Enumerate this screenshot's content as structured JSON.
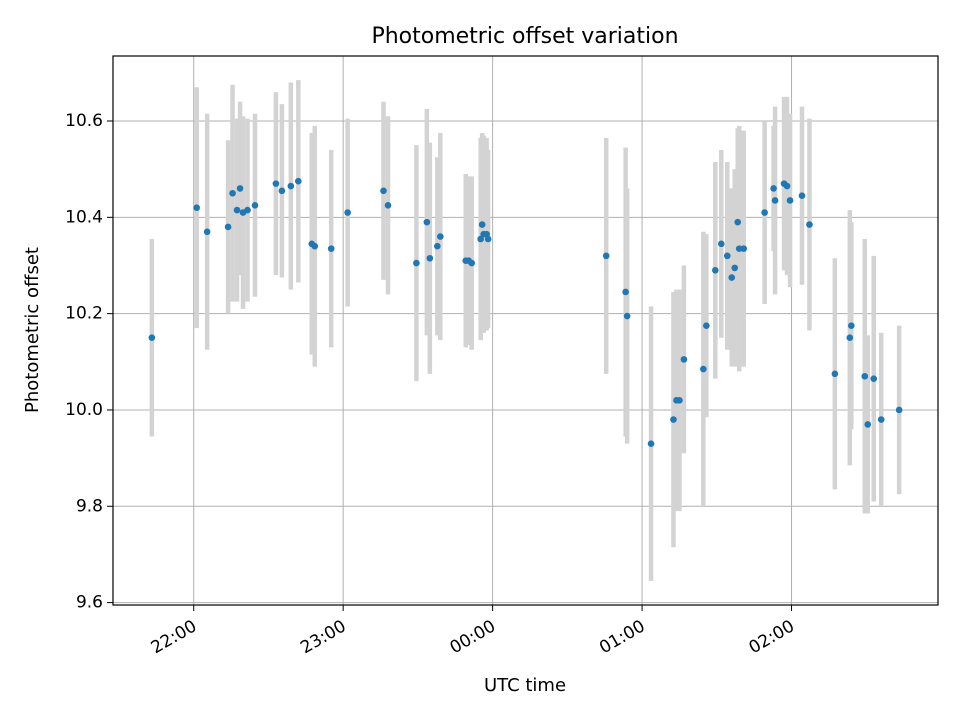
{
  "chart_data": {
    "type": "scatter",
    "title": "Photometric offset variation",
    "xlabel": "UTC time",
    "ylabel": "Photometric offset",
    "x_units": "UTC time (hours relative to 00:00)",
    "xlim": [
      -2.54,
      2.98
    ],
    "ylim": [
      9.595,
      10.735
    ],
    "grid": true,
    "xticks": [
      {
        "value": -2,
        "label": "22:00"
      },
      {
        "value": -1,
        "label": "23:00"
      },
      {
        "value": 0,
        "label": "00:00"
      },
      {
        "value": 1,
        "label": "01:00"
      },
      {
        "value": 2,
        "label": "02:00"
      }
    ],
    "yticks": [
      {
        "value": 9.6,
        "label": "9.6"
      },
      {
        "value": 9.8,
        "label": "9.8"
      },
      {
        "value": 10.0,
        "label": "10.0"
      },
      {
        "value": 10.2,
        "label": "10.2"
      },
      {
        "value": 10.4,
        "label": "10.4"
      },
      {
        "value": 10.6,
        "label": "10.6"
      }
    ],
    "marker_color": "#1f77b4",
    "errorbar_color": "#d3d3d3",
    "series": [
      {
        "points": [
          {
            "x": -2.28,
            "y": 10.15,
            "err": 0.205
          },
          {
            "x": -1.98,
            "y": 10.42,
            "err": 0.25
          },
          {
            "x": -1.91,
            "y": 10.37,
            "err": 0.245
          },
          {
            "x": -1.77,
            "y": 10.38,
            "err": 0.18
          },
          {
            "x": -1.74,
            "y": 10.45,
            "err": 0.225
          },
          {
            "x": -1.71,
            "y": 10.415,
            "err": 0.19
          },
          {
            "x": -1.69,
            "y": 10.46,
            "err": 0.18
          },
          {
            "x": -1.67,
            "y": 10.41,
            "err": 0.2
          },
          {
            "x": -1.64,
            "y": 10.415,
            "err": 0.19
          },
          {
            "x": -1.59,
            "y": 10.425,
            "err": 0.19
          },
          {
            "x": -1.45,
            "y": 10.47,
            "err": 0.19
          },
          {
            "x": -1.41,
            "y": 10.455,
            "err": 0.18
          },
          {
            "x": -1.35,
            "y": 10.465,
            "err": 0.215
          },
          {
            "x": -1.3,
            "y": 10.475,
            "err": 0.21
          },
          {
            "x": -1.21,
            "y": 10.345,
            "err": 0.23
          },
          {
            "x": -1.19,
            "y": 10.34,
            "err": 0.25
          },
          {
            "x": -1.08,
            "y": 10.335,
            "err": 0.205
          },
          {
            "x": -0.97,
            "y": 10.41,
            "err": 0.195
          },
          {
            "x": -0.73,
            "y": 10.455,
            "err": 0.185
          },
          {
            "x": -0.7,
            "y": 10.425,
            "err": 0.185
          },
          {
            "x": -0.51,
            "y": 10.305,
            "err": 0.245
          },
          {
            "x": -0.44,
            "y": 10.39,
            "err": 0.235
          },
          {
            "x": -0.42,
            "y": 10.315,
            "err": 0.24
          },
          {
            "x": -0.37,
            "y": 10.34,
            "err": 0.185
          },
          {
            "x": -0.35,
            "y": 10.36,
            "err": 0.215
          },
          {
            "x": -0.18,
            "y": 10.31,
            "err": 0.18
          },
          {
            "x": -0.16,
            "y": 10.31,
            "err": 0.175
          },
          {
            "x": -0.14,
            "y": 10.305,
            "err": 0.18
          },
          {
            "x": -0.08,
            "y": 10.355,
            "err": 0.21
          },
          {
            "x": -0.07,
            "y": 10.385,
            "err": 0.19
          },
          {
            "x": -0.06,
            "y": 10.365,
            "err": 0.205
          },
          {
            "x": -0.04,
            "y": 10.365,
            "err": 0.2
          },
          {
            "x": -0.03,
            "y": 10.355,
            "err": 0.185
          },
          {
            "x": 0.76,
            "y": 10.32,
            "err": 0.245
          },
          {
            "x": 0.89,
            "y": 10.245,
            "err": 0.3
          },
          {
            "x": 0.9,
            "y": 10.195,
            "err": 0.265
          },
          {
            "x": 1.06,
            "y": 9.93,
            "err": 0.285
          },
          {
            "x": 1.21,
            "y": 9.98,
            "err": 0.265
          },
          {
            "x": 1.23,
            "y": 10.02,
            "err": 0.23
          },
          {
            "x": 1.25,
            "y": 10.02,
            "err": 0.23
          },
          {
            "x": 1.28,
            "y": 10.105,
            "err": 0.195
          },
          {
            "x": 1.41,
            "y": 10.085,
            "err": 0.285
          },
          {
            "x": 1.43,
            "y": 10.175,
            "err": 0.19
          },
          {
            "x": 1.49,
            "y": 10.29,
            "err": 0.225
          },
          {
            "x": 1.53,
            "y": 10.345,
            "err": 0.195
          },
          {
            "x": 1.57,
            "y": 10.32,
            "err": 0.195
          },
          {
            "x": 1.6,
            "y": 10.275,
            "err": 0.185
          },
          {
            "x": 1.62,
            "y": 10.295,
            "err": 0.205
          },
          {
            "x": 1.64,
            "y": 10.39,
            "err": 0.195
          },
          {
            "x": 1.65,
            "y": 10.335,
            "err": 0.255
          },
          {
            "x": 1.68,
            "y": 10.335,
            "err": 0.245
          },
          {
            "x": 1.82,
            "y": 10.41,
            "err": 0.19
          },
          {
            "x": 1.88,
            "y": 10.46,
            "err": 0.13
          },
          {
            "x": 1.89,
            "y": 10.435,
            "err": 0.195
          },
          {
            "x": 1.95,
            "y": 10.47,
            "err": 0.18
          },
          {
            "x": 1.97,
            "y": 10.465,
            "err": 0.185
          },
          {
            "x": 1.99,
            "y": 10.435,
            "err": 0.18
          },
          {
            "x": 2.07,
            "y": 10.445,
            "err": 0.185
          },
          {
            "x": 2.12,
            "y": 10.385,
            "err": 0.22
          },
          {
            "x": 2.29,
            "y": 10.075,
            "err": 0.24
          },
          {
            "x": 2.39,
            "y": 10.15,
            "err": 0.265
          },
          {
            "x": 2.4,
            "y": 10.175,
            "err": 0.215
          },
          {
            "x": 2.49,
            "y": 10.07,
            "err": 0.285
          },
          {
            "x": 2.51,
            "y": 9.97,
            "err": 0.185
          },
          {
            "x": 2.55,
            "y": 10.065,
            "err": 0.255
          },
          {
            "x": 2.6,
            "y": 9.98,
            "err": 0.18
          },
          {
            "x": 2.72,
            "y": 10.0,
            "err": 0.175
          }
        ]
      }
    ]
  }
}
